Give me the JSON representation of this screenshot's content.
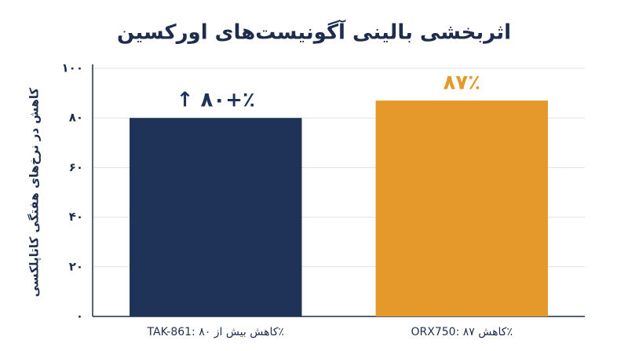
{
  "chart_data": {
    "type": "bar",
    "title": "اثربخشی بالینی آگونیست‌های اورکسین",
    "y_label": "کاهش در نرخ‌های هفتگی کاتاپلکسی",
    "categories": [
      "TAK-861: کاهش بیش از ۸۰٪",
      "ORX750: کاهش ۸۷٪"
    ],
    "values": [
      80,
      87
    ],
    "value_labels": [
      "↑ ۸۰+٪",
      "۸۷٪"
    ],
    "colors": [
      "#1f3358",
      "#e6992b"
    ],
    "ylim": [
      0,
      100
    ],
    "yticks": [
      {
        "value": 0,
        "label": "۰"
      },
      {
        "value": 20,
        "label": "۲۰"
      },
      {
        "value": 40,
        "label": "۴۰"
      },
      {
        "value": 60,
        "label": "۶۰"
      },
      {
        "value": 80,
        "label": "۸۰"
      },
      {
        "value": 100,
        "label": "۱۰۰"
      }
    ],
    "grid": true
  }
}
